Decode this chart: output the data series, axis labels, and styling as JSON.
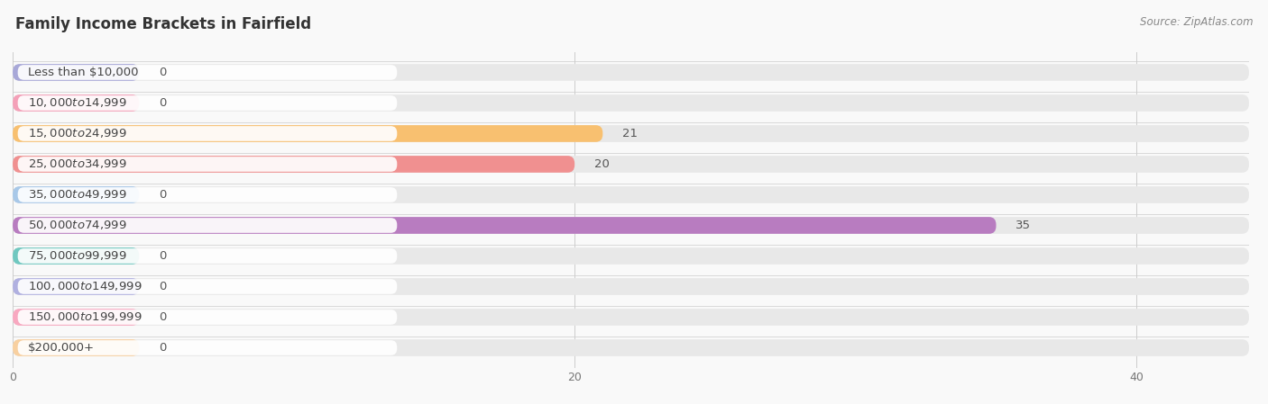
{
  "title": "Family Income Brackets in Fairfield",
  "source": "Source: ZipAtlas.com",
  "categories": [
    "Less than $10,000",
    "$10,000 to $14,999",
    "$15,000 to $24,999",
    "$25,000 to $34,999",
    "$35,000 to $49,999",
    "$50,000 to $74,999",
    "$75,000 to $99,999",
    "$100,000 to $149,999",
    "$150,000 to $199,999",
    "$200,000+"
  ],
  "values": [
    0,
    0,
    21,
    20,
    0,
    35,
    0,
    0,
    0,
    0
  ],
  "bar_colors": [
    "#a8a8d8",
    "#f4a0b8",
    "#f8c070",
    "#f09090",
    "#a8c8e8",
    "#b87cc0",
    "#70c8c0",
    "#b0b0e0",
    "#f8a8c0",
    "#f8d0a0"
  ],
  "xlim": [
    0,
    44
  ],
  "xticks": [
    0,
    20,
    40
  ],
  "background_color": "#f9f9f9",
  "bar_bg_color": "#e8e8e8",
  "title_fontsize": 12,
  "label_fontsize": 9.5,
  "tick_fontsize": 9,
  "source_fontsize": 8.5,
  "value_label_color": "#555555",
  "title_color": "#333333",
  "label_color": "#444444"
}
